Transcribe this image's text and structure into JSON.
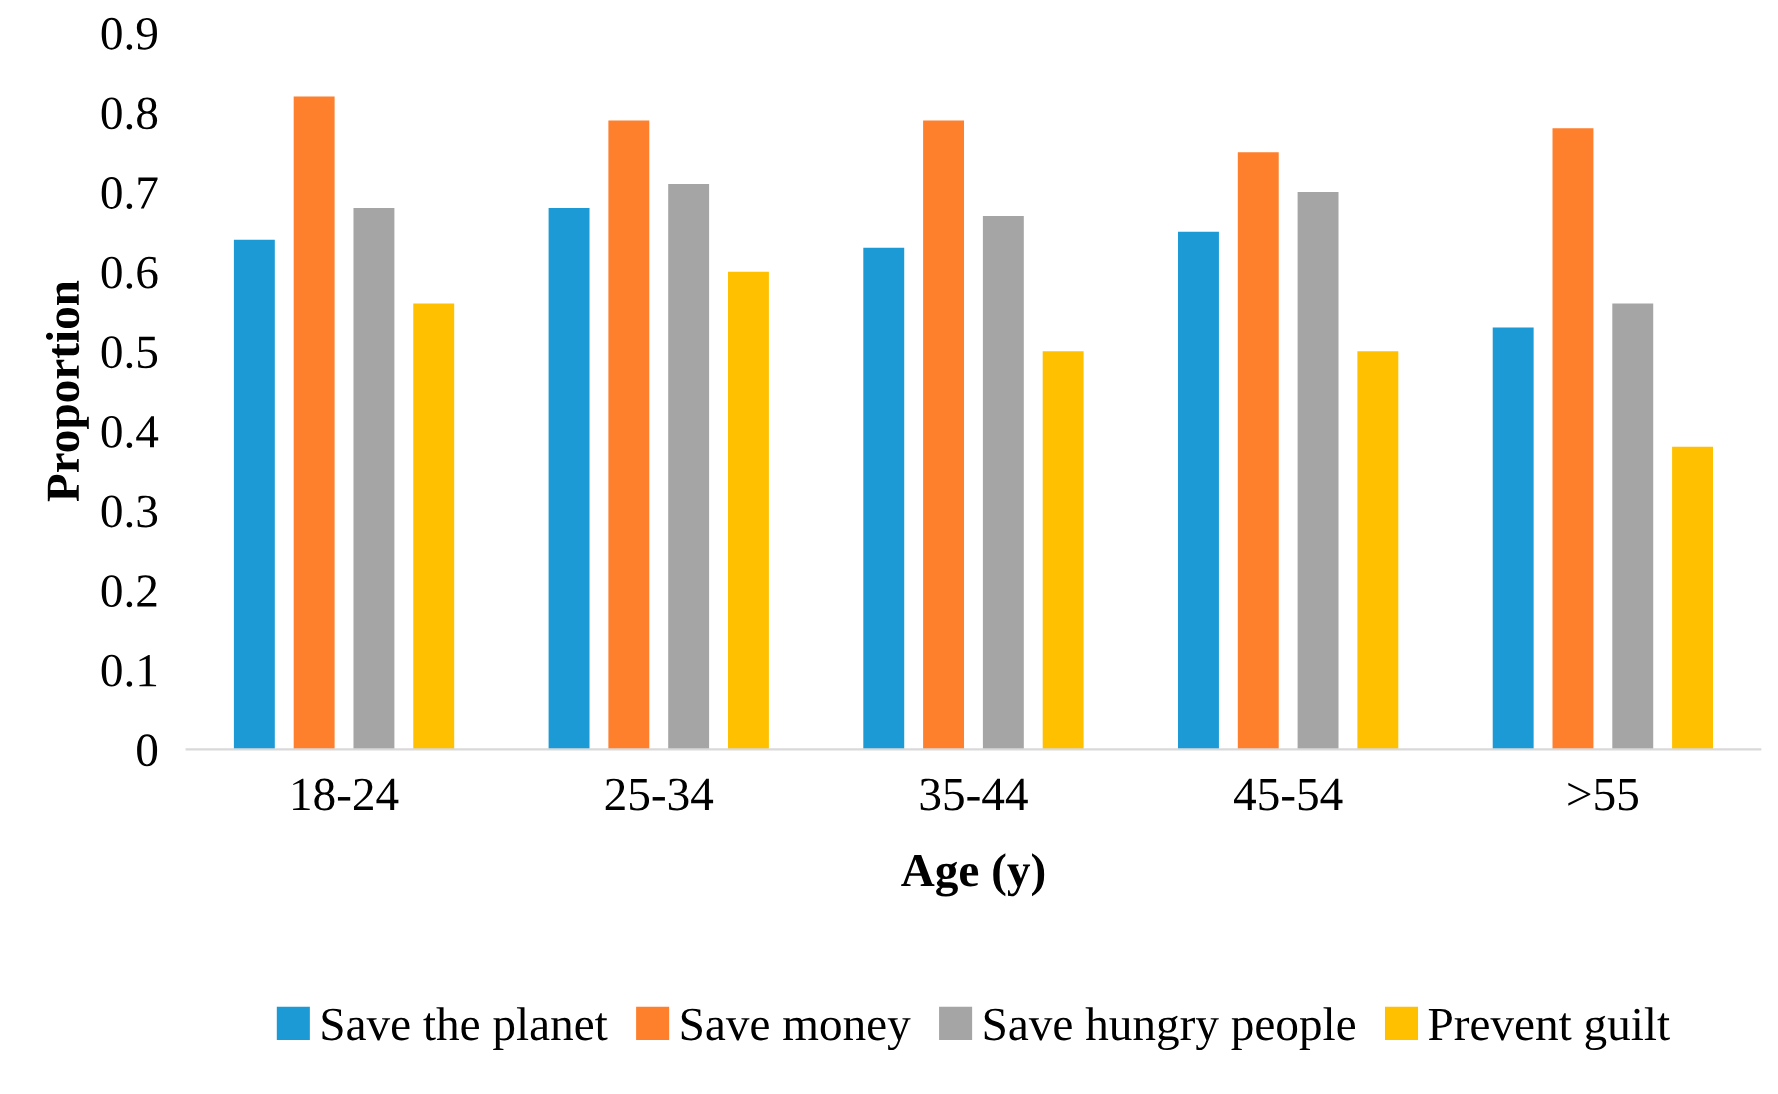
{
  "chart_data": {
    "type": "bar",
    "xlabel": "Age (y)",
    "ylabel": "Proportion",
    "categories": [
      "18-24",
      "25-34",
      "35-44",
      "45-54",
      ">55"
    ],
    "series": [
      {
        "name": "Save the planet",
        "color": "#1b9ad6",
        "values": [
          0.64,
          0.68,
          0.63,
          0.65,
          0.53
        ]
      },
      {
        "name": "Save money",
        "color": "#fe7f2c",
        "values": [
          0.82,
          0.79,
          0.79,
          0.75,
          0.78
        ]
      },
      {
        "name": "Save hungry people",
        "color": "#a5a5a5",
        "values": [
          0.68,
          0.71,
          0.67,
          0.7,
          0.56
        ]
      },
      {
        "name": "Prevent guilt",
        "color": "#ffc000",
        "values": [
          0.56,
          0.6,
          0.5,
          0.5,
          0.38
        ]
      }
    ],
    "ylim": [
      0,
      0.9
    ],
    "yticks": [
      0,
      0.1,
      0.2,
      0.3,
      0.4,
      0.5,
      0.6,
      0.7,
      0.8,
      0.9
    ],
    "grid": false,
    "legend": "bottom"
  }
}
